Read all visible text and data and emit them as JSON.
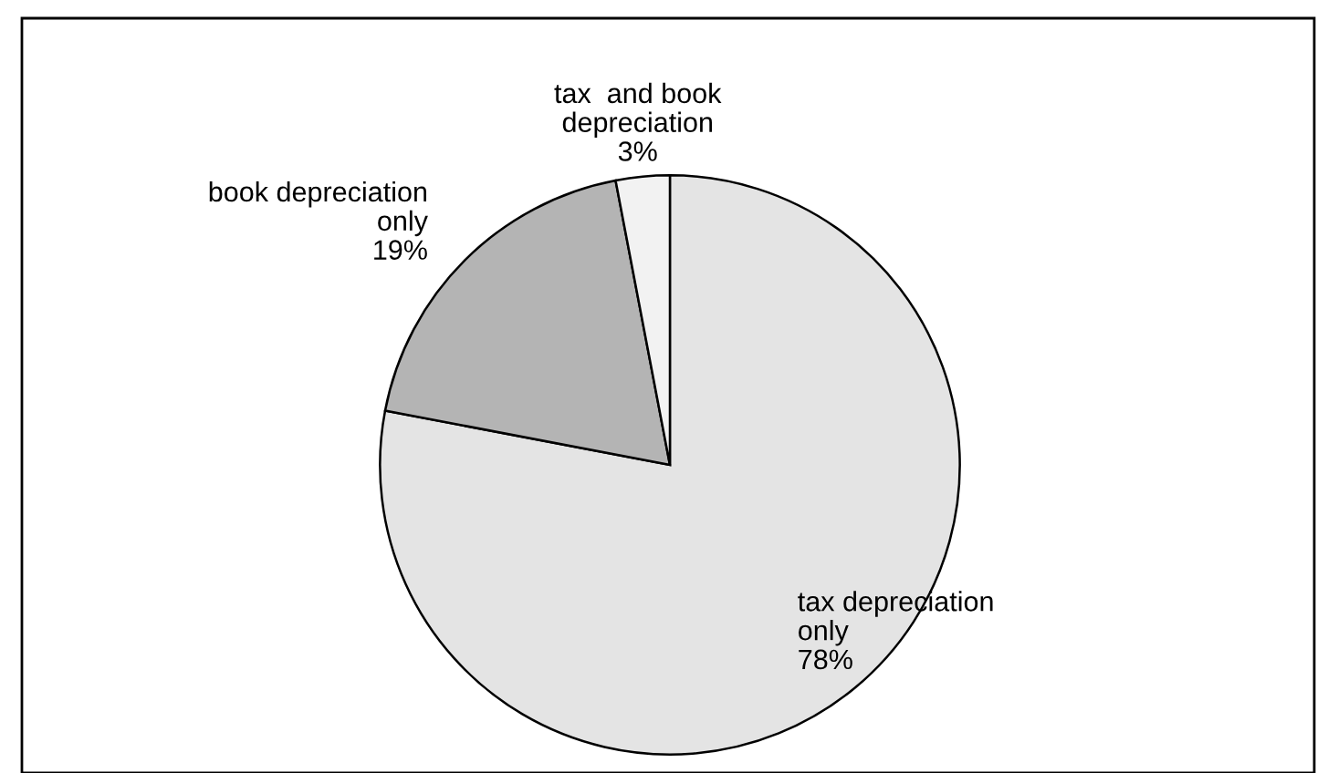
{
  "chart_data": {
    "type": "pie",
    "categories": [
      "tax depreciation\nonly",
      "book depreciation\nonly",
      "tax  and book\ndepreciation"
    ],
    "values": [
      78,
      19,
      3
    ],
    "colors": [
      "#e4e4e4",
      "#b4b4b4",
      "#f2f2f2"
    ],
    "value_labels": [
      "78%",
      "19%",
      "3%"
    ],
    "legend": false
  }
}
